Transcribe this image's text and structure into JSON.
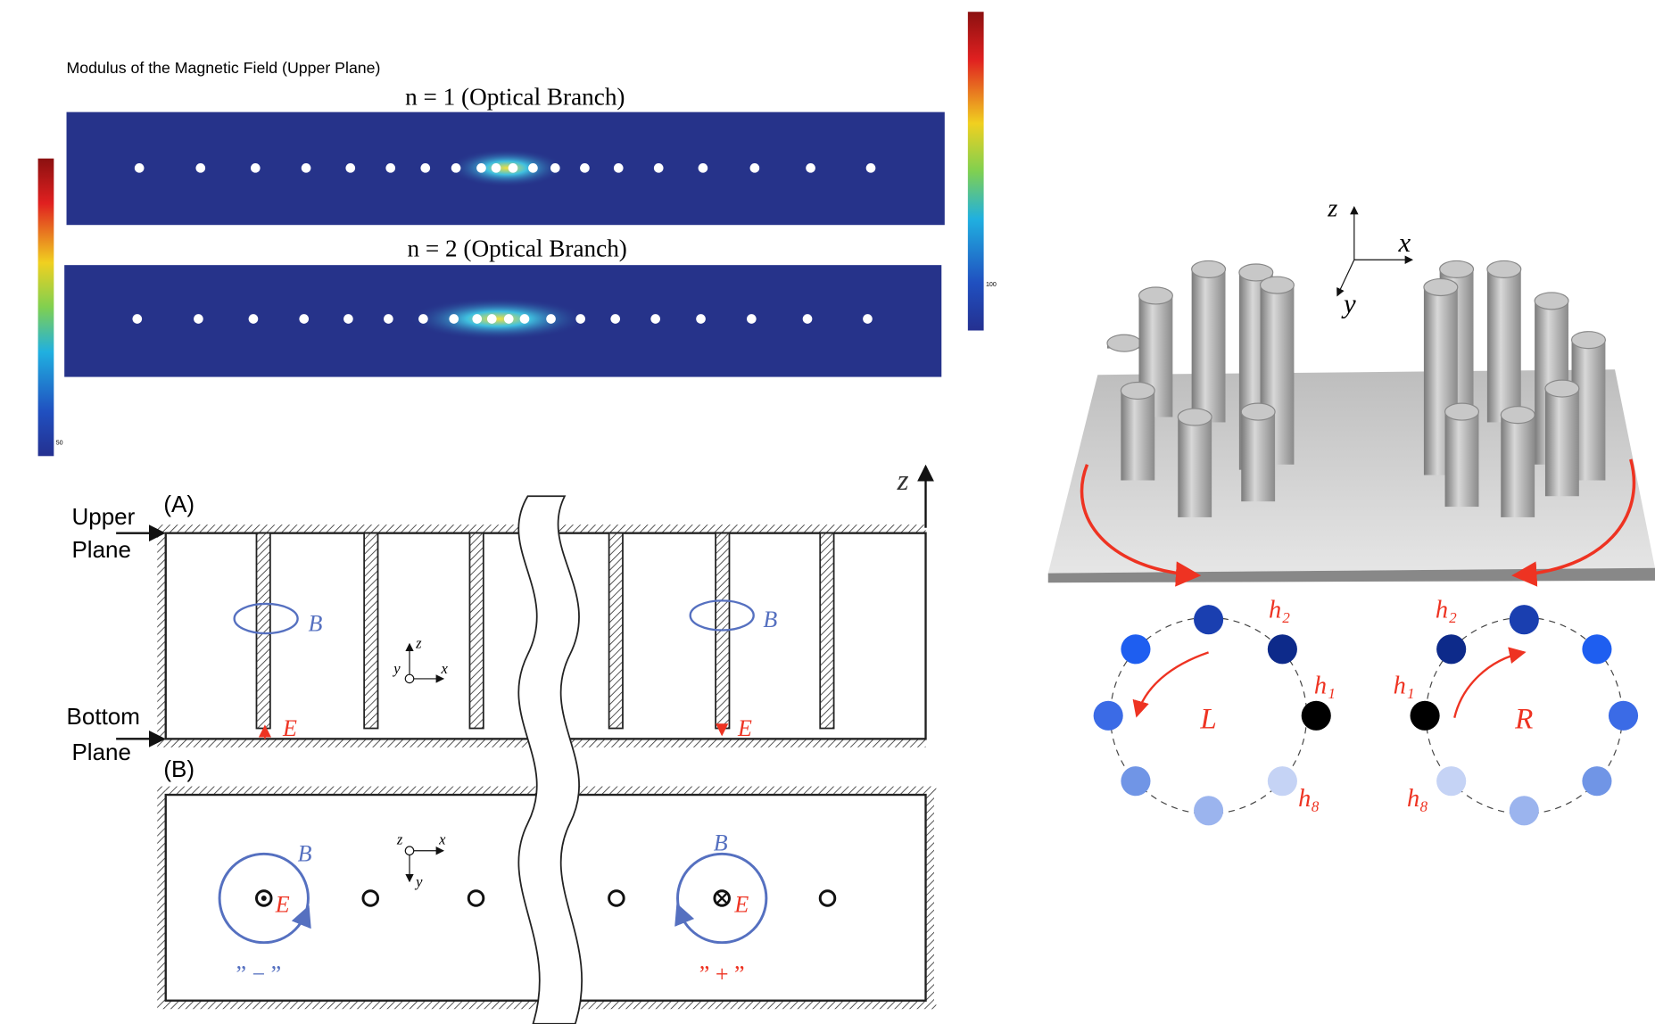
{
  "figure": {
    "heatmap": {
      "title": "Modulus of the Magnetic Field (Upper Plane)",
      "panels": [
        {
          "label": "n = 1 (Optical Branch)"
        },
        {
          "label": "n = 2 (Optical Branch)"
        }
      ],
      "colorbar_left_tick": "50",
      "colorbar_right_tick": "100"
    },
    "schematic": {
      "panel_a": {
        "label": "(A)",
        "upper_plane": [
          "Upper",
          "Plane"
        ],
        "bottom_plane": [
          "Bottom",
          "Plane"
        ],
        "axis_z": "z",
        "field_b": "B",
        "field_e": "E",
        "axes": {
          "x": "x",
          "y": "y",
          "z": "z"
        }
      },
      "panel_b": {
        "label": "(B)",
        "field_b": "B",
        "field_e": "E",
        "axes": {
          "x": "x",
          "y": "y",
          "z": "z"
        },
        "minus": "” − ”",
        "plus": "” + ”"
      }
    },
    "rings": {
      "axes": {
        "x": "x",
        "y": "y",
        "z": "z"
      },
      "left": {
        "label": "L",
        "h1": "h₁",
        "h2": "h₂",
        "h8": "h₈"
      },
      "right": {
        "label": "R",
        "h1": "h₁",
        "h2": "h₂",
        "h8": "h₈"
      }
    }
  }
}
